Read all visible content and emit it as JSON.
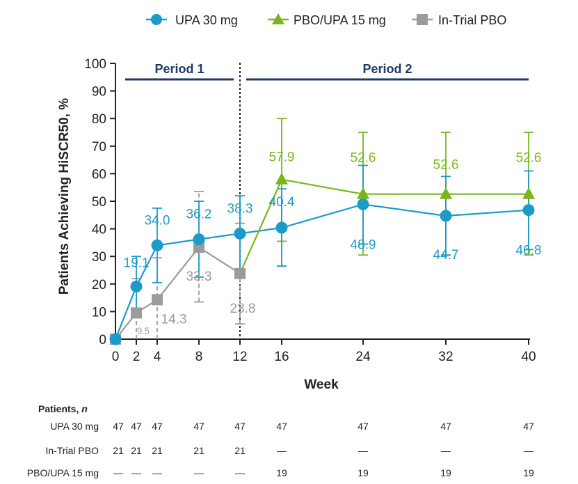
{
  "chart_data": {
    "type": "line",
    "ylabel": "Patients Achieving HiSCR50, %",
    "xlabel": "Week",
    "ylim": [
      0,
      100
    ],
    "yticks": [
      0,
      10,
      20,
      30,
      40,
      50,
      60,
      70,
      80,
      90,
      100
    ],
    "xticks": [
      0,
      2,
      4,
      8,
      12,
      16,
      24,
      32,
      40
    ],
    "period_labels": [
      "Period 1",
      "Period 2"
    ],
    "period_split_week": 12,
    "colors": {
      "upa": "#1a9bc8",
      "pbo_upa": "#7ab51d",
      "pbo": "#9b9b9b",
      "period": "#1f3864"
    },
    "legend": [
      "UPA 30 mg",
      "PBO/UPA 15 mg",
      "In-Trial PBO"
    ],
    "series": [
      {
        "name": "UPA 30 mg",
        "points": [
          {
            "week": 0,
            "value": 0,
            "label": "",
            "err_low": null,
            "err_high": null
          },
          {
            "week": 2,
            "value": 19.1,
            "label": "19.1",
            "err_low": 8,
            "err_high": 30
          },
          {
            "week": 4,
            "value": 34.0,
            "label": "34.0",
            "err_low": 20.5,
            "err_high": 47.5
          },
          {
            "week": 8,
            "value": 36.2,
            "label": "36.2",
            "err_low": 22.5,
            "err_high": 50
          },
          {
            "week": 12,
            "value": 38.3,
            "label": "38.3",
            "err_low": 24.5,
            "err_high": 52
          },
          {
            "week": 16,
            "value": 40.4,
            "label": "40.4",
            "err_low": 26.5,
            "err_high": 54.5
          },
          {
            "week": 24,
            "value": 48.9,
            "label": "48.9",
            "err_low": 34.5,
            "err_high": 63
          },
          {
            "week": 32,
            "value": 44.7,
            "label": "44.7",
            "err_low": 30.5,
            "err_high": 59
          },
          {
            "week": 40,
            "value": 46.8,
            "label": "46.8",
            "err_low": 32.5,
            "err_high": 61
          }
        ]
      },
      {
        "name": "PBO/UPA 15 mg",
        "points": [
          {
            "week": 16,
            "value": 57.9,
            "label": "57.9",
            "err_low": 35.5,
            "err_high": 80
          },
          {
            "week": 24,
            "value": 52.6,
            "label": "52.6",
            "err_low": 30.5,
            "err_high": 75
          },
          {
            "week": 32,
            "value": 52.6,
            "label": "52.6",
            "err_low": 30.5,
            "err_high": 75
          },
          {
            "week": 40,
            "value": 52.6,
            "label": "52.6",
            "err_low": 30.5,
            "err_high": 75
          }
        ]
      },
      {
        "name": "In-Trial PBO",
        "points": [
          {
            "week": 0,
            "value": 0,
            "label": "",
            "err_low": null,
            "err_high": null
          },
          {
            "week": 2,
            "value": 9.5,
            "label": "9.5",
            "err_low": 0,
            "err_high": 22
          },
          {
            "week": 4,
            "value": 14.3,
            "label": "14.3",
            "err_low": 0,
            "err_high": 29.5
          },
          {
            "week": 8,
            "value": 33.3,
            "label": "33.3",
            "err_low": 13.5,
            "err_high": 53.5
          },
          {
            "week": 12,
            "value": 23.8,
            "label": "23.8",
            "err_low": 5.5,
            "err_high": 42
          }
        ]
      }
    ],
    "patients_table": {
      "title": "Patients, ",
      "title_italic": "n",
      "rows": [
        {
          "label": "UPA 30 mg",
          "values": [
            "47",
            "47",
            "47",
            "47",
            "47",
            "47",
            "47",
            "47",
            "47"
          ]
        },
        {
          "label": "In-Trial PBO",
          "values": [
            "21",
            "21",
            "21",
            "21",
            "21",
            "—",
            "—",
            "—",
            "—"
          ]
        },
        {
          "label": "PBO/UPA 15 mg",
          "values": [
            "—",
            "—",
            "—",
            "—",
            "—",
            "19",
            "19",
            "19",
            "19"
          ]
        }
      ]
    }
  }
}
